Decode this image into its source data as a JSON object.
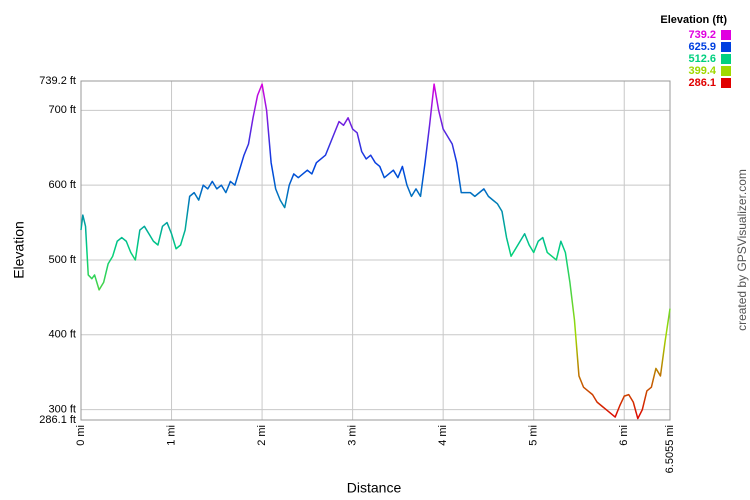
{
  "chart_data": {
    "type": "line",
    "xlabel": "Distance",
    "ylabel": "Elevation",
    "credit": "created by GPSVisualizer.com",
    "x": [
      0,
      0.02,
      0.05,
      0.08,
      0.12,
      0.15,
      0.2,
      0.25,
      0.3,
      0.35,
      0.4,
      0.45,
      0.5,
      0.55,
      0.6,
      0.65,
      0.7,
      0.75,
      0.8,
      0.85,
      0.9,
      0.95,
      1.0,
      1.05,
      1.1,
      1.15,
      1.2,
      1.25,
      1.3,
      1.35,
      1.4,
      1.45,
      1.5,
      1.55,
      1.6,
      1.65,
      1.7,
      1.75,
      1.8,
      1.85,
      1.9,
      1.95,
      2.0,
      2.05,
      2.1,
      2.15,
      2.2,
      2.25,
      2.3,
      2.35,
      2.4,
      2.45,
      2.5,
      2.55,
      2.6,
      2.65,
      2.7,
      2.75,
      2.8,
      2.85,
      2.9,
      2.95,
      3.0,
      3.05,
      3.1,
      3.15,
      3.2,
      3.25,
      3.3,
      3.35,
      3.4,
      3.45,
      3.5,
      3.55,
      3.6,
      3.65,
      3.7,
      3.75,
      3.8,
      3.85,
      3.9,
      3.95,
      4.0,
      4.05,
      4.1,
      4.15,
      4.2,
      4.25,
      4.3,
      4.35,
      4.4,
      4.45,
      4.5,
      4.55,
      4.6,
      4.65,
      4.7,
      4.75,
      4.8,
      4.85,
      4.9,
      4.95,
      5.0,
      5.05,
      5.1,
      5.15,
      5.2,
      5.25,
      5.3,
      5.35,
      5.4,
      5.45,
      5.5,
      5.55,
      5.6,
      5.65,
      5.7,
      5.75,
      5.8,
      5.85,
      5.9,
      5.95,
      6.0,
      6.05,
      6.1,
      6.15,
      6.2,
      6.25,
      6.3,
      6.35,
      6.4,
      6.45,
      6.5055
    ],
    "values": [
      540,
      560,
      545,
      480,
      475,
      480,
      460,
      470,
      495,
      505,
      525,
      530,
      525,
      510,
      500,
      540,
      545,
      535,
      525,
      520,
      545,
      550,
      535,
      515,
      520,
      540,
      585,
      590,
      580,
      600,
      595,
      605,
      595,
      600,
      590,
      605,
      600,
      620,
      640,
      655,
      690,
      720,
      735,
      700,
      630,
      595,
      580,
      570,
      600,
      615,
      610,
      615,
      620,
      615,
      630,
      635,
      640,
      655,
      670,
      685,
      680,
      690,
      675,
      670,
      645,
      635,
      640,
      630,
      625,
      610,
      615,
      620,
      610,
      625,
      600,
      585,
      595,
      585,
      630,
      680,
      735,
      700,
      675,
      665,
      655,
      630,
      590,
      590,
      590,
      585,
      590,
      595,
      585,
      580,
      575,
      565,
      530,
      505,
      515,
      525,
      535,
      520,
      510,
      525,
      530,
      510,
      505,
      500,
      525,
      510,
      470,
      420,
      345,
      330,
      325,
      320,
      310,
      305,
      300,
      295,
      290,
      305,
      318,
      320,
      310,
      288,
      300,
      325,
      330,
      355,
      345,
      390,
      435
    ],
    "xlim": [
      0,
      6.5055
    ],
    "xticks": [
      {
        "value": 0,
        "label": "0 mi"
      },
      {
        "value": 1,
        "label": "1 mi"
      },
      {
        "value": 2,
        "label": "2 mi"
      },
      {
        "value": 3,
        "label": "3 mi"
      },
      {
        "value": 4,
        "label": "4 mi"
      },
      {
        "value": 5,
        "label": "5 mi"
      },
      {
        "value": 6,
        "label": "6 mi"
      },
      {
        "value": 6.5055,
        "label": "6.5055 mi"
      }
    ],
    "ylim": [
      286.1,
      739.2
    ],
    "yticks": [
      {
        "value": 286.1,
        "label": "286.1 ft"
      },
      {
        "value": 300,
        "label": "300 ft"
      },
      {
        "value": 400,
        "label": "400 ft"
      },
      {
        "value": 500,
        "label": "500 ft"
      },
      {
        "value": 600,
        "label": "600 ft"
      },
      {
        "value": 700,
        "label": "700 ft"
      },
      {
        "value": 739.2,
        "label": "739.2 ft"
      }
    ],
    "grid": true,
    "legend": {
      "title": "Elevation (ft)",
      "position": "top-right",
      "scale": [
        {
          "value": 739.2,
          "color": "#e000e0"
        },
        {
          "value": 625.9,
          "color": "#0040e0"
        },
        {
          "value": 512.6,
          "color": "#00d080"
        },
        {
          "value": 399.4,
          "color": "#a0d800"
        },
        {
          "value": 286.1,
          "color": "#e00000"
        }
      ]
    }
  }
}
